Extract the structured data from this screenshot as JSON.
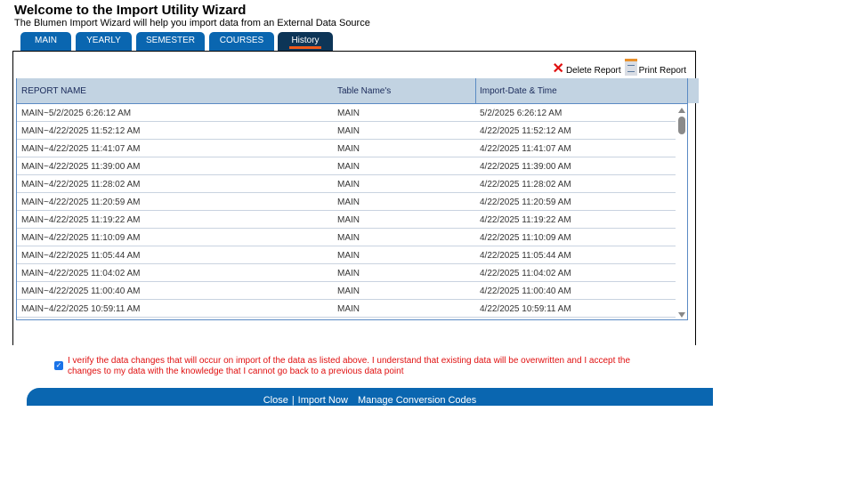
{
  "header": {
    "title": "Welcome to the Import Utility Wizard",
    "subtitle": "The Blumen Import Wizard will help you import data from an External Data Source"
  },
  "tabs": [
    {
      "label": "MAIN"
    },
    {
      "label": "YEARLY"
    },
    {
      "label": "SEMESTER"
    },
    {
      "label": "COURSES"
    },
    {
      "label": "History",
      "active": true
    }
  ],
  "actions": {
    "delete": "Delete Report",
    "print": "Print Report"
  },
  "table": {
    "columns": [
      "REPORT NAME",
      "Table Name's",
      "Import-Date & Time"
    ],
    "rows": [
      [
        "MAIN~5/2/2025 6:26:12 AM",
        "MAIN",
        "5/2/2025 6:26:12 AM"
      ],
      [
        "MAIN~4/22/2025 11:52:12 AM",
        "MAIN",
        "4/22/2025 11:52:12 AM"
      ],
      [
        "MAIN~4/22/2025 11:41:07 AM",
        "MAIN",
        "4/22/2025 11:41:07 AM"
      ],
      [
        "MAIN~4/22/2025 11:39:00 AM",
        "MAIN",
        "4/22/2025 11:39:00 AM"
      ],
      [
        "MAIN~4/22/2025 11:28:02 AM",
        "MAIN",
        "4/22/2025 11:28:02 AM"
      ],
      [
        "MAIN~4/22/2025 11:20:59 AM",
        "MAIN",
        "4/22/2025 11:20:59 AM"
      ],
      [
        "MAIN~4/22/2025 11:19:22 AM",
        "MAIN",
        "4/22/2025 11:19:22 AM"
      ],
      [
        "MAIN~4/22/2025 11:10:09 AM",
        "MAIN",
        "4/22/2025 11:10:09 AM"
      ],
      [
        "MAIN~4/22/2025 11:05:44 AM",
        "MAIN",
        "4/22/2025 11:05:44 AM"
      ],
      [
        "MAIN~4/22/2025 11:04:02 AM",
        "MAIN",
        "4/22/2025 11:04:02 AM"
      ],
      [
        "MAIN~4/22/2025 11:00:40 AM",
        "MAIN",
        "4/22/2025 11:00:40 AM"
      ],
      [
        "MAIN~4/22/2025 10:59:11 AM",
        "MAIN",
        "4/22/2025 10:59:11 AM"
      ]
    ]
  },
  "verify": {
    "checked": true,
    "text": "I verify the data changes that will occur on import of the data as listed above. I understand that existing data will be overwritten and I accept the changes to my data with the knowledge that I cannot go back to a previous data point"
  },
  "footer": {
    "close": "Close",
    "import": "Import Now",
    "manage": "Manage Conversion Codes"
  },
  "colors": {
    "tab": "#0a66b0",
    "active_tab": "#0d3557",
    "accent": "#f05a1a",
    "warning": "#e01010",
    "header_row": "#c2d3e2"
  }
}
